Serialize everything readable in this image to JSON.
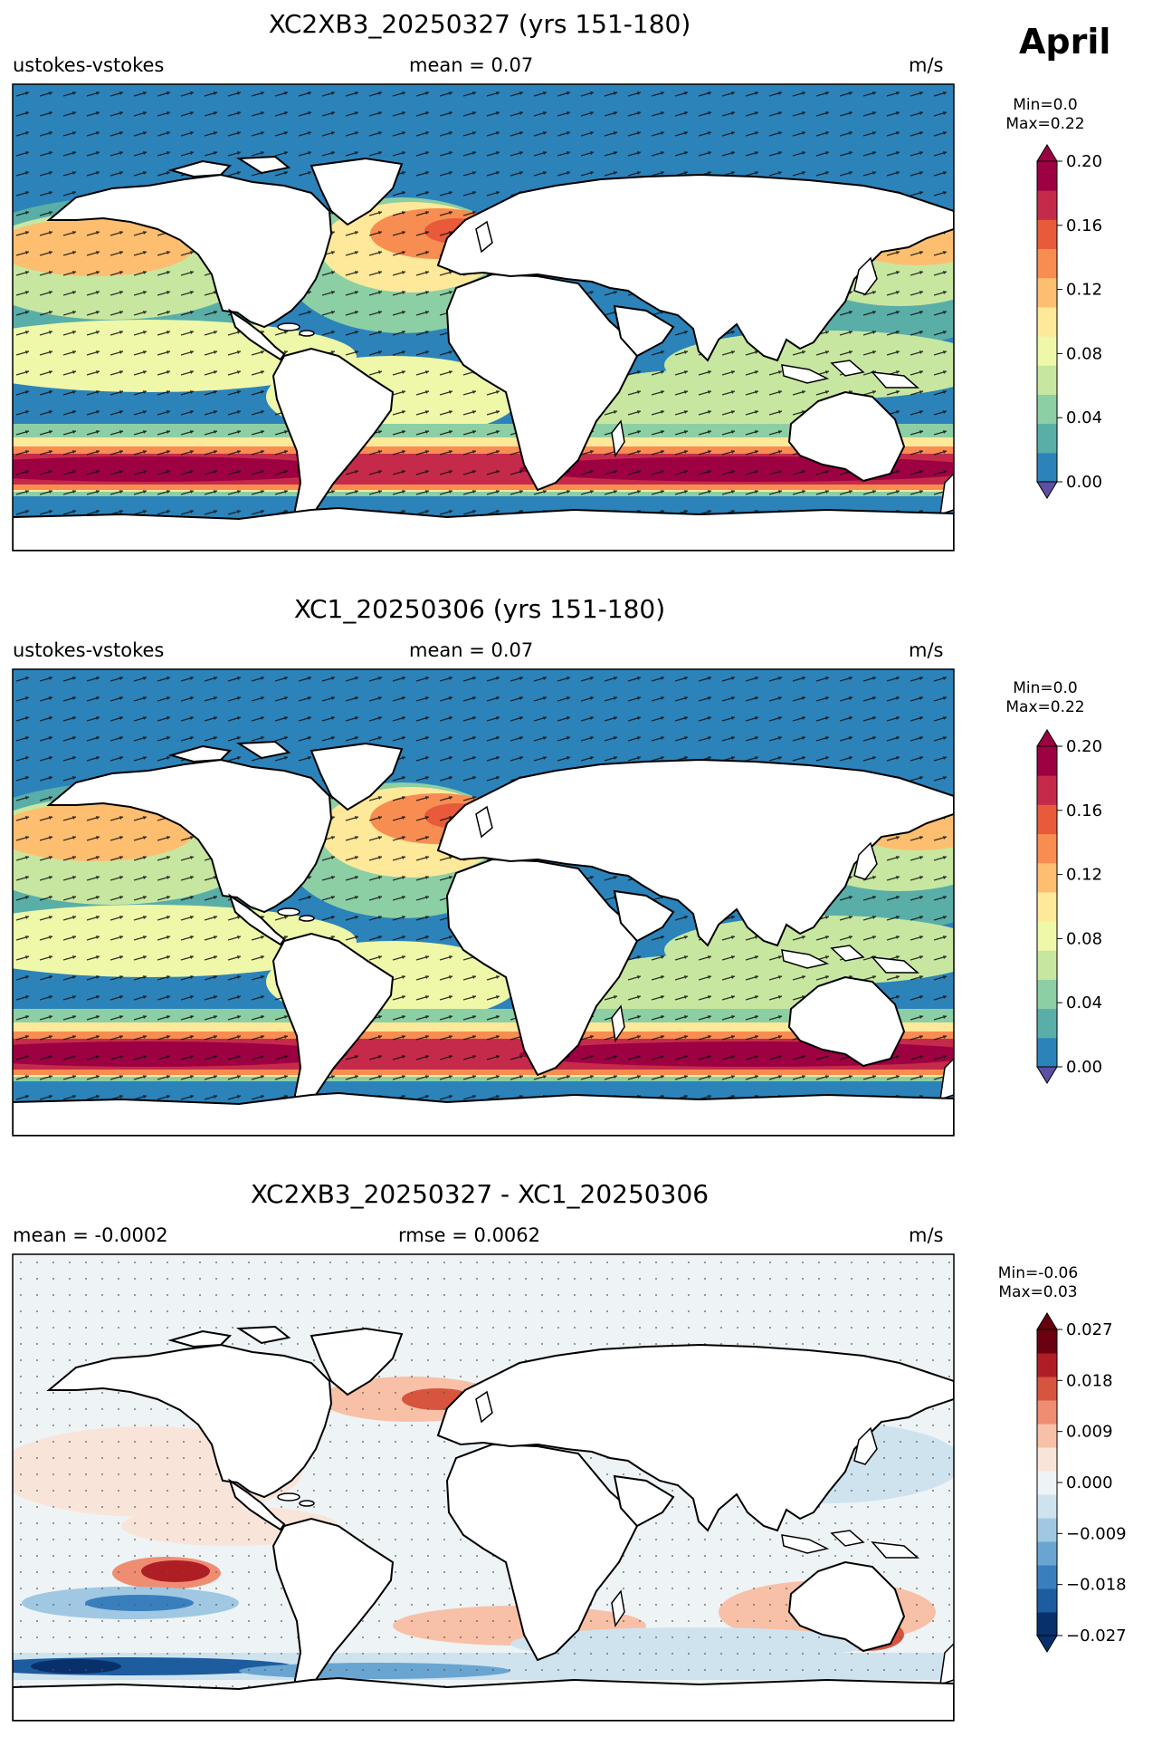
{
  "month": "April",
  "panels": [
    {
      "title": "XC2XB3_20250327 (yrs 151-180)",
      "left_label": "ustokes-vstokes",
      "center_label": "mean = 0.07",
      "units": "m/s",
      "min_label": "Min=0.0",
      "max_label": "Max=0.22",
      "colorbar_ticks": [
        "0.20",
        "0.16",
        "0.12",
        "0.08",
        "0.04",
        "0.00"
      ],
      "colorbar_colors": [
        "#2b83ba",
        "#5aaea8",
        "#8ccfa4",
        "#c7e7a0",
        "#eef8a8",
        "#fee899",
        "#fdbe70",
        "#f88d52",
        "#e85a3a",
        "#c62a4a",
        "#9e0142"
      ],
      "extend_low_color": "#5e4fa2",
      "extend_high_color": "#9e0142"
    },
    {
      "title": "XC1_20250306 (yrs 151-180)",
      "left_label": "ustokes-vstokes",
      "center_label": "mean = 0.07",
      "units": "m/s",
      "min_label": "Min=0.0",
      "max_label": "Max=0.22",
      "colorbar_ticks": [
        "0.20",
        "0.16",
        "0.12",
        "0.08",
        "0.04",
        "0.00"
      ],
      "colorbar_colors": [
        "#2b83ba",
        "#5aaea8",
        "#8ccfa4",
        "#c7e7a0",
        "#eef8a8",
        "#fee899",
        "#fdbe70",
        "#f88d52",
        "#e85a3a",
        "#c62a4a",
        "#9e0142"
      ],
      "extend_low_color": "#5e4fa2",
      "extend_high_color": "#9e0142"
    },
    {
      "title": "XC2XB3_20250327 - XC1_20250306",
      "left_label": "mean = -0.0002",
      "center_label": "rmse = 0.0062",
      "units": "m/s",
      "min_label": "Min=-0.06",
      "max_label": "Max=0.03",
      "colorbar_ticks": [
        "0.027",
        "0.018",
        "0.009",
        "0.000",
        "−0.009",
        "−0.018",
        "−0.027"
      ],
      "colorbar_colors": [
        "#08306b",
        "#1c5c9f",
        "#3a7fbd",
        "#6aa5d2",
        "#a0c8e3",
        "#cfe3ef",
        "#eef3f5",
        "#f9e4da",
        "#f8c0a6",
        "#ef8d72",
        "#d7543f",
        "#b01e25",
        "#6b0010"
      ],
      "extend_low_color": "#08306b",
      "extend_high_color": "#67000d"
    }
  ]
}
